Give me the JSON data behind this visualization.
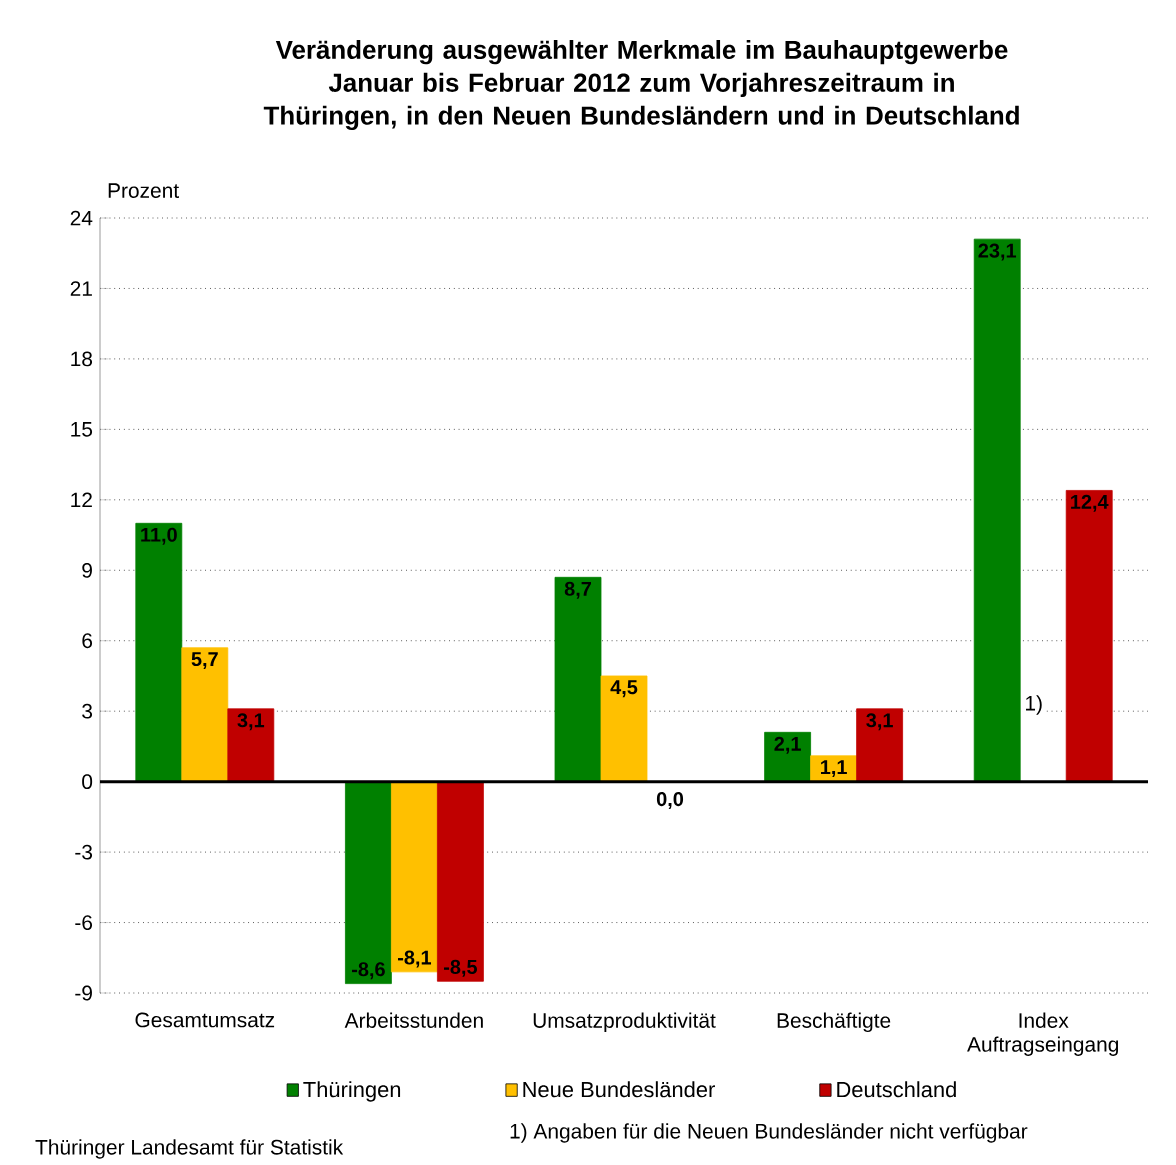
{
  "chart_data": {
    "type": "bar",
    "title": "Veränderung ausgewählter Merkmale im Bauhauptgewerbe Januar bis Februar 2012 zum Vorjahreszeitraum in Thüringen, in den Neuen Bundesländern und in Deutschland",
    "ylabel": "Prozent",
    "categories": [
      "Gesamtumsatz",
      "Arbeitsstunden",
      "Umsatzproduktivität",
      "Beschäftigte",
      "Index Auftragseingang"
    ],
    "series": [
      {
        "name": "Thüringen",
        "color": "#008000",
        "values": [
          11.0,
          -8.6,
          8.7,
          2.1,
          23.1
        ],
        "value_labels": [
          "11,0",
          "-8,6",
          "8,7",
          "2,1",
          "23,1"
        ]
      },
      {
        "name": "Neue Bundesländer",
        "color": "#ffc000",
        "values": [
          5.7,
          -8.1,
          4.5,
          1.1,
          null
        ],
        "value_labels": [
          "5,7",
          "-8,1",
          "4,5",
          "1,1",
          null
        ]
      },
      {
        "name": "Deutschland",
        "color": "#c00000",
        "values": [
          3.1,
          -8.5,
          0.0,
          3.1,
          12.4
        ],
        "value_labels": [
          "3,1",
          "-8,5",
          "0,0",
          "3,1",
          "12,4"
        ]
      }
    ],
    "ylim": [
      -9,
      24
    ],
    "yticks": [
      -9,
      -6,
      -3,
      0,
      3,
      6,
      9,
      12,
      15,
      18,
      21,
      24
    ],
    "grid": "y",
    "legend": "bottom",
    "ref_lines": [
      {
        "axis": "y",
        "value": 0,
        "color": "#000000"
      }
    ],
    "annotations": [
      "1)",
      "1) Angaben für die Neuen Bundesländer nicht verfügbar",
      "Thüringer Landesamt für Statistik"
    ]
  }
}
